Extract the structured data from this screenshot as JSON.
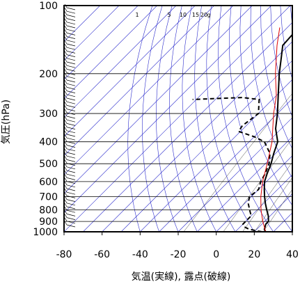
{
  "chart_data": {
    "type": "line",
    "subtype": "skew-T log-p diagram",
    "xlabel": "気温(実線), 露点(破線)",
    "ylabel": "気圧(hPa)",
    "xlim": [
      -80,
      40
    ],
    "ylim": [
      1000,
      100
    ],
    "y_scale": "log",
    "x_ticks": [
      "-80",
      "-60",
      "-40",
      "-20",
      "0",
      "20",
      "40"
    ],
    "y_ticks": [
      "100",
      "200",
      "300",
      "400",
      "500",
      "600",
      "700",
      "800",
      "900",
      "1000"
    ],
    "mixing_ratio_labels": [
      "1",
      "5",
      "10",
      "15",
      "20",
      "g"
    ],
    "grid": true,
    "colors": {
      "temperature": "#000000",
      "dewpoint": "#000000",
      "parcel": "#dd0000",
      "background_lines": "#2b2bcc",
      "grid": "#000000"
    },
    "series": [
      {
        "role": "temperature",
        "style": "solid",
        "points": [
          [
            1000,
            26
          ],
          [
            975,
            24
          ],
          [
            950,
            23
          ],
          [
            925,
            22
          ],
          [
            900,
            22
          ],
          [
            850,
            19
          ],
          [
            800,
            15
          ],
          [
            750,
            11
          ],
          [
            700,
            7
          ],
          [
            650,
            3
          ],
          [
            600,
            -1
          ],
          [
            550,
            -4
          ],
          [
            500,
            -7
          ],
          [
            450,
            -11
          ],
          [
            400,
            -15
          ],
          [
            350,
            -23
          ],
          [
            300,
            -30
          ],
          [
            250,
            -39
          ],
          [
            200,
            -50
          ],
          [
            175,
            -56
          ],
          [
            150,
            -63
          ],
          [
            125,
            -64
          ],
          [
            110,
            -70
          ],
          [
            100,
            -70
          ]
        ]
      },
      {
        "role": "dewpoint",
        "style": "dashed",
        "points": [
          [
            1000,
            24
          ],
          [
            975,
            16
          ],
          [
            950,
            12
          ],
          [
            925,
            10
          ],
          [
            900,
            10
          ],
          [
            850,
            10
          ],
          [
            800,
            6
          ],
          [
            750,
            2
          ],
          [
            700,
            -1
          ],
          [
            650,
            0
          ],
          [
            600,
            -3
          ],
          [
            550,
            -5
          ],
          [
            500,
            -8
          ],
          [
            450,
            -13
          ],
          [
            400,
            -22
          ],
          [
            380,
            -30
          ],
          [
            360,
            -41
          ],
          [
            340,
            -42
          ],
          [
            300,
            -40
          ],
          [
            260,
            -47
          ],
          [
            255,
            -57
          ],
          [
            260,
            -82
          ]
        ]
      },
      {
        "role": "parcel",
        "style": "solid",
        "points": [
          [
            1000,
            26
          ],
          [
            900,
            19
          ],
          [
            800,
            12
          ],
          [
            700,
            5
          ],
          [
            600,
            -2
          ],
          [
            500,
            -9
          ],
          [
            400,
            -18
          ],
          [
            300,
            -32
          ],
          [
            250,
            -40
          ],
          [
            200,
            -52
          ],
          [
            150,
            -66
          ],
          [
            125,
            -74
          ]
        ]
      }
    ]
  }
}
